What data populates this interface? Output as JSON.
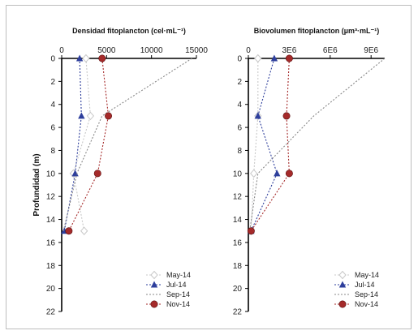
{
  "colors": {
    "may": "#c8c8c8",
    "jul": "#2e3f9c",
    "sep": "#888888",
    "nov": "#a52a2a",
    "axis": "#000000"
  },
  "chart_data": [
    {
      "type": "line",
      "title": "Densidad fitoplancton (cel·mL⁻¹)",
      "ylabel": "Profundidad (m)",
      "xlim": [
        0,
        15000
      ],
      "ylim": [
        0,
        22
      ],
      "x_ticks": [
        0,
        5000,
        10000,
        15000
      ],
      "x_tick_labels": [
        "0",
        "5000",
        "10000",
        "15000"
      ],
      "y_ticks": [
        0,
        2,
        4,
        6,
        8,
        10,
        12,
        14,
        16,
        18,
        20,
        22
      ],
      "y_tick_labels": [
        "0",
        "2",
        "4",
        "6",
        "8",
        "10",
        "12",
        "14",
        "16",
        "18",
        "20",
        "22"
      ],
      "y_inverted": true,
      "legend_position": "bottom-right",
      "series": [
        {
          "name": "May-14",
          "values": [
            {
              "x": 2700,
              "depth": 0
            },
            {
              "x": 3200,
              "depth": 5
            },
            {
              "x": 1300,
              "depth": 10
            },
            {
              "x": 2500,
              "depth": 15
            }
          ]
        },
        {
          "name": "Jul-14",
          "values": [
            {
              "x": 2000,
              "depth": 0
            },
            {
              "x": 2200,
              "depth": 5
            },
            {
              "x": 1500,
              "depth": 10
            },
            {
              "x": 300,
              "depth": 15
            }
          ]
        },
        {
          "name": "Sep-14",
          "values": [
            {
              "x": 14500,
              "depth": 0
            },
            {
              "x": 4500,
              "depth": 5
            },
            {
              "x": 1700,
              "depth": 10
            },
            {
              "x": 200,
              "depth": 15
            }
          ]
        },
        {
          "name": "Nov-14",
          "values": [
            {
              "x": 4500,
              "depth": 0
            },
            {
              "x": 5200,
              "depth": 5
            },
            {
              "x": 4000,
              "depth": 10
            },
            {
              "x": 800,
              "depth": 15
            }
          ]
        }
      ]
    },
    {
      "type": "line",
      "title": "Biovolumen fitoplancton (µm³·mL⁻¹)",
      "ylabel": "",
      "xlim": [
        0,
        10000000
      ],
      "ylim": [
        0,
        22
      ],
      "x_ticks": [
        0,
        3000000,
        6000000,
        9000000
      ],
      "x_tick_labels": [
        "0",
        "3E6",
        "6E6",
        "9E6"
      ],
      "y_ticks": [
        0,
        2,
        4,
        6,
        8,
        10,
        12,
        14,
        16,
        18,
        20,
        22
      ],
      "y_tick_labels": [
        "0",
        "2",
        "4",
        "6",
        "8",
        "10",
        "12",
        "14",
        "16",
        "18",
        "20",
        "22"
      ],
      "y_inverted": true,
      "legend_position": "bottom-right",
      "series": [
        {
          "name": "May-14",
          "values": [
            {
              "x": 700000,
              "depth": 0
            },
            {
              "x": 700000,
              "depth": 5
            },
            {
              "x": 400000,
              "depth": 10
            },
            {
              "x": 200000,
              "depth": 15
            }
          ]
        },
        {
          "name": "Jul-14",
          "values": [
            {
              "x": 1900000,
              "depth": 0
            },
            {
              "x": 700000,
              "depth": 5
            },
            {
              "x": 2100000,
              "depth": 10
            },
            {
              "x": 200000,
              "depth": 15
            }
          ]
        },
        {
          "name": "Sep-14",
          "values": [
            {
              "x": 10000000,
              "depth": 0
            },
            {
              "x": 4800000,
              "depth": 5
            },
            {
              "x": 700000,
              "depth": 10
            },
            {
              "x": 100000,
              "depth": 15
            }
          ]
        },
        {
          "name": "Nov-14",
          "values": [
            {
              "x": 3000000,
              "depth": 0
            },
            {
              "x": 2800000,
              "depth": 5
            },
            {
              "x": 3000000,
              "depth": 10
            },
            {
              "x": 200000,
              "depth": 15
            }
          ]
        }
      ]
    }
  ]
}
